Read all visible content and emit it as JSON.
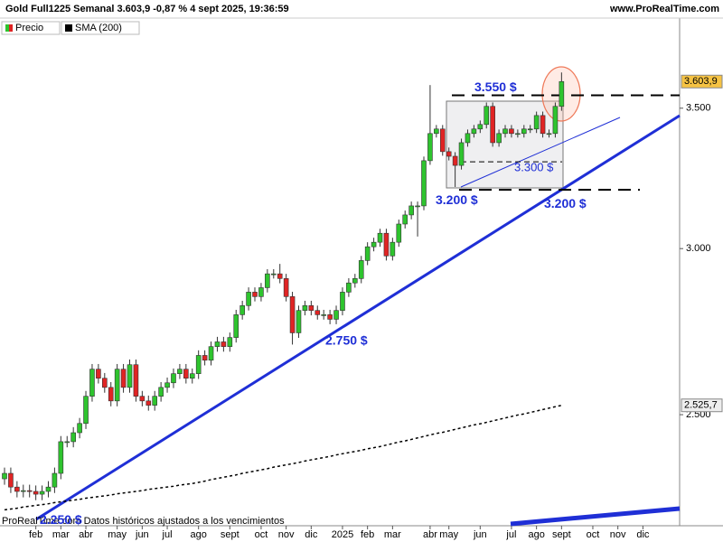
{
  "chart_data": {
    "type": "candlestick",
    "title": "Gold Full1225 Semanal 3.603,9 -0,87 % 4 sept 2025, 19:36:59",
    "source": "www.ProRealTime.com",
    "footer": "ProRealTime.com Datos históricos ajustados a los vencimientos",
    "log_scale": true,
    "ylim": [
      2213,
      3864
    ],
    "yticks": [
      {
        "value": 2500,
        "label": "2.500"
      },
      {
        "value": 3000,
        "label": "3.000"
      },
      {
        "value": 3500,
        "label": "3.500"
      }
    ],
    "categories": [
      null,
      null,
      null,
      null,
      null,
      "feb",
      null,
      null,
      null,
      "mar",
      null,
      null,
      null,
      "abr",
      null,
      null,
      null,
      null,
      "may",
      null,
      null,
      null,
      "jun",
      null,
      null,
      null,
      "jul",
      null,
      null,
      null,
      null,
      "ago",
      null,
      null,
      null,
      null,
      "sept",
      null,
      null,
      null,
      null,
      "oct",
      null,
      null,
      null,
      "nov",
      null,
      null,
      null,
      "dic",
      null,
      null,
      null,
      null,
      "2025",
      null,
      null,
      null,
      "feb",
      null,
      null,
      null,
      "mar",
      null,
      null,
      null,
      null,
      null,
      "abr",
      null,
      null,
      "may",
      null,
      null,
      null,
      null,
      "jun",
      null,
      null,
      null,
      null,
      "jul",
      null,
      null,
      null,
      "ago",
      null,
      null,
      null,
      "sept",
      null,
      null,
      null,
      null,
      "oct",
      null,
      null,
      null,
      "nov",
      null,
      null,
      null,
      "dic",
      null,
      null,
      null,
      null,
      null
    ],
    "series": [
      {
        "name": "Precio",
        "up_color": "#2ec42e",
        "down_color": "#e02424",
        "last_label": "3.603,9",
        "open": [
          2330,
          2344,
          2309,
          2298,
          2300,
          2298,
          2291,
          2298,
          2309,
          2344,
          2427,
          2427,
          2451,
          2476,
          2551,
          2628,
          2602,
          2576,
          2538,
          2628,
          2576,
          2641,
          2551,
          2538,
          2526,
          2551,
          2576,
          2589,
          2615,
          2628,
          2602,
          2615,
          2668,
          2654,
          2694,
          2708,
          2694,
          2721,
          2790,
          2818,
          2860,
          2846,
          2874,
          2918,
          2918,
          2903,
          2846,
          2735,
          2803,
          2818,
          2803,
          2790,
          2790,
          2776,
          2803,
          2860,
          2889,
          2903,
          2961,
          3006,
          3021,
          3051,
          2976,
          3021,
          3082,
          3113,
          3144,
          3144,
          3304,
          3404,
          3421,
          3337,
          3320,
          3287,
          3370,
          3404,
          3421,
          3438,
          3507,
          3370,
          3404,
          3421,
          3404,
          3404,
          3421,
          3421,
          3472,
          3404,
          3404,
          3507,
          null,
          null,
          null,
          null,
          null,
          null,
          null,
          null,
          null,
          null,
          null,
          null,
          null,
          null,
          null,
          null,
          null,
          null
        ],
        "high": [
          2359,
          2359,
          2324,
          2315,
          2315,
          2313,
          2313,
          2324,
          2359,
          2442,
          2442,
          2466,
          2491,
          2566,
          2643,
          2643,
          2617,
          2591,
          2643,
          2643,
          2656,
          2656,
          2566,
          2553,
          2566,
          2591,
          2604,
          2630,
          2643,
          2643,
          2630,
          2683,
          2683,
          2709,
          2723,
          2723,
          2736,
          2805,
          2833,
          2875,
          2875,
          2889,
          2933,
          2933,
          2950,
          2918,
          2861,
          2818,
          2833,
          2833,
          2818,
          2805,
          2805,
          2818,
          2875,
          2904,
          2918,
          2976,
          3021,
          3036,
          3066,
          3066,
          3036,
          3097,
          3128,
          3159,
          3159,
          3319,
          3590,
          3436,
          3436,
          3352,
          3335,
          3385,
          3419,
          3436,
          3453,
          3522,
          3522,
          3419,
          3436,
          3436,
          3419,
          3436,
          3436,
          3487,
          3487,
          3419,
          3522,
          3640,
          null,
          null,
          null,
          null,
          null,
          null,
          null,
          null,
          null,
          null,
          null,
          null,
          null,
          null,
          null,
          null,
          null,
          null
        ],
        "low": [
          2315,
          2294,
          2283,
          2283,
          2283,
          2276,
          2276,
          2283,
          2294,
          2329,
          2412,
          2412,
          2436,
          2461,
          2536,
          2587,
          2561,
          2523,
          2523,
          2561,
          2561,
          2536,
          2523,
          2511,
          2511,
          2536,
          2561,
          2574,
          2600,
          2587,
          2587,
          2600,
          2639,
          2639,
          2679,
          2679,
          2679,
          2706,
          2775,
          2803,
          2831,
          2831,
          2859,
          2903,
          2888,
          2831,
          2700,
          2720,
          2788,
          2788,
          2775,
          2775,
          2761,
          2761,
          2788,
          2845,
          2874,
          2888,
          2946,
          2991,
          3006,
          2961,
          2961,
          3006,
          3067,
          3098,
          3040,
          3129,
          3289,
          3389,
          3322,
          3305,
          3210,
          3272,
          3355,
          3389,
          3406,
          3423,
          3355,
          3355,
          3389,
          3389,
          3389,
          3389,
          3406,
          3406,
          3389,
          3389,
          3389,
          3490,
          null,
          null,
          null,
          null,
          null,
          null,
          null,
          null,
          null,
          null,
          null,
          null,
          null,
          null,
          null,
          null,
          null,
          null
        ],
        "close": [
          2344,
          2309,
          2298,
          2300,
          2298,
          2291,
          2298,
          2309,
          2344,
          2427,
          2427,
          2451,
          2476,
          2551,
          2628,
          2602,
          2576,
          2538,
          2628,
          2576,
          2641,
          2551,
          2538,
          2526,
          2551,
          2576,
          2589,
          2615,
          2628,
          2602,
          2615,
          2668,
          2654,
          2694,
          2708,
          2694,
          2721,
          2790,
          2818,
          2860,
          2846,
          2874,
          2918,
          2918,
          2903,
          2846,
          2735,
          2803,
          2818,
          2803,
          2790,
          2790,
          2776,
          2803,
          2860,
          2889,
          2903,
          2961,
          3006,
          3021,
          3051,
          2976,
          3021,
          3082,
          3113,
          3144,
          3144,
          3304,
          3404,
          3421,
          3337,
          3320,
          3287,
          3370,
          3404,
          3421,
          3438,
          3507,
          3370,
          3404,
          3421,
          3404,
          3404,
          3421,
          3421,
          3472,
          3404,
          3404,
          3507,
          3603.9,
          null,
          null,
          null,
          null,
          null,
          null,
          null,
          null,
          null,
          null,
          null,
          null,
          null,
          null,
          null,
          null,
          null,
          null
        ]
      },
      {
        "name": "SMA (200)",
        "color": "#000000",
        "last_label": "2.525,7",
        "values": [
          2252,
          2254,
          2256,
          2259,
          2261,
          2263,
          2265,
          2267,
          2270,
          2272,
          2274,
          2276,
          2278,
          2281,
          2283,
          2285,
          2287,
          2289,
          2292,
          2294,
          2296,
          2298,
          2300,
          2303,
          2305,
          2307,
          2309,
          2311,
          2314,
          2316,
          2318,
          2321,
          2324,
          2328,
          2331,
          2334,
          2337,
          2340,
          2344,
          2347,
          2350,
          2353,
          2356,
          2360,
          2363,
          2366,
          2369,
          2372,
          2376,
          2379,
          2382,
          2385,
          2388,
          2392,
          2395,
          2398,
          2401,
          2404,
          2408,
          2411,
          2414,
          2418,
          2422,
          2426,
          2429,
          2433,
          2437,
          2441,
          2445,
          2449,
          2452,
          2456,
          2460,
          2464,
          2468,
          2472,
          2475,
          2479,
          2483,
          2487,
          2491,
          2495,
          2499,
          2502,
          2506,
          2510,
          2514,
          2518,
          2522,
          2525.7,
          null,
          null,
          null,
          null,
          null,
          null,
          null,
          null,
          null,
          null,
          null,
          null,
          null,
          null,
          null,
          null,
          null,
          null
        ]
      }
    ],
    "annotations": [
      {
        "value": 3550,
        "label": "3.550 $"
      },
      {
        "value": 3200,
        "label": "3.200 $"
      },
      {
        "value": 3300,
        "label": "3.300 $"
      },
      {
        "value": 2750,
        "label": "2.750 $"
      },
      {
        "value": 3200,
        "label": "3.200 $"
      },
      {
        "value": 2250,
        "label": "2.250 $"
      }
    ]
  }
}
